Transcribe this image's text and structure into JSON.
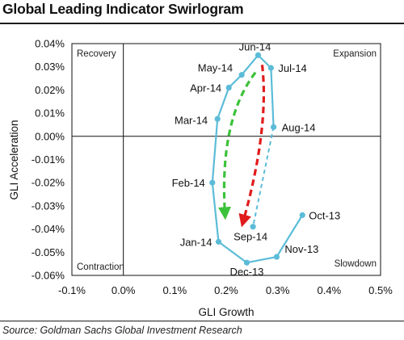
{
  "title": "Global Leading Indicator Swirlogram",
  "source": "Source: Goldman Sachs Global Investment Research",
  "chart_data": {
    "type": "scatter",
    "title": "Global Leading Indicator Swirlogram",
    "xlabel": "GLI Growth",
    "ylabel": "GLI Acceleration",
    "xlim": [
      -0.001,
      0.005
    ],
    "ylim": [
      -0.0006,
      0.0004
    ],
    "x_ticks": [
      "-0.1%",
      "0.0%",
      "0.1%",
      "0.2%",
      "0.3%",
      "0.4%",
      "0.5%"
    ],
    "y_ticks": [
      "0.04%",
      "0.03%",
      "0.02%",
      "0.01%",
      "0.00%",
      "-0.01%",
      "-0.02%",
      "-0.03%",
      "-0.04%",
      "-0.05%",
      "-0.06%"
    ],
    "quadrants": {
      "top_left": "Recovery",
      "top_right": "Expansion",
      "bottom_left": "Contraction",
      "bottom_right": "Slowdown"
    },
    "series": [
      {
        "points": [
          {
            "label": "Oct-13",
            "x": 0.00348,
            "y": -0.00034
          },
          {
            "label": "Nov-13",
            "x": 0.00298,
            "y": -0.00052
          },
          {
            "label": "Dec-13",
            "x": 0.0024,
            "y": -0.000545
          },
          {
            "label": "Jan-14",
            "x": 0.00185,
            "y": -0.000455
          },
          {
            "label": "Feb-14",
            "x": 0.00173,
            "y": -0.0002
          },
          {
            "label": "Mar-14",
            "x": 0.00183,
            "y": 7.5e-05
          },
          {
            "label": "Apr-14",
            "x": 0.00205,
            "y": 0.00021
          },
          {
            "label": "May-14",
            "x": 0.0023,
            "y": 0.000265
          },
          {
            "label": "Jun-14",
            "x": 0.00262,
            "y": 0.00035
          },
          {
            "label": "Jul-14",
            "x": 0.00287,
            "y": 0.000295
          },
          {
            "label": "Aug-14",
            "x": 0.00292,
            "y": 4e-05
          },
          {
            "label": "Sep-14",
            "x": 0.00252,
            "y": -0.00039
          }
        ],
        "color": "#5cbcd8"
      }
    ],
    "grid": false,
    "colors": {
      "series": "#5cbcd8",
      "green_arrow": "#3cc23a",
      "red_arrow": "#e01b1b",
      "axis": "#111111"
    }
  }
}
